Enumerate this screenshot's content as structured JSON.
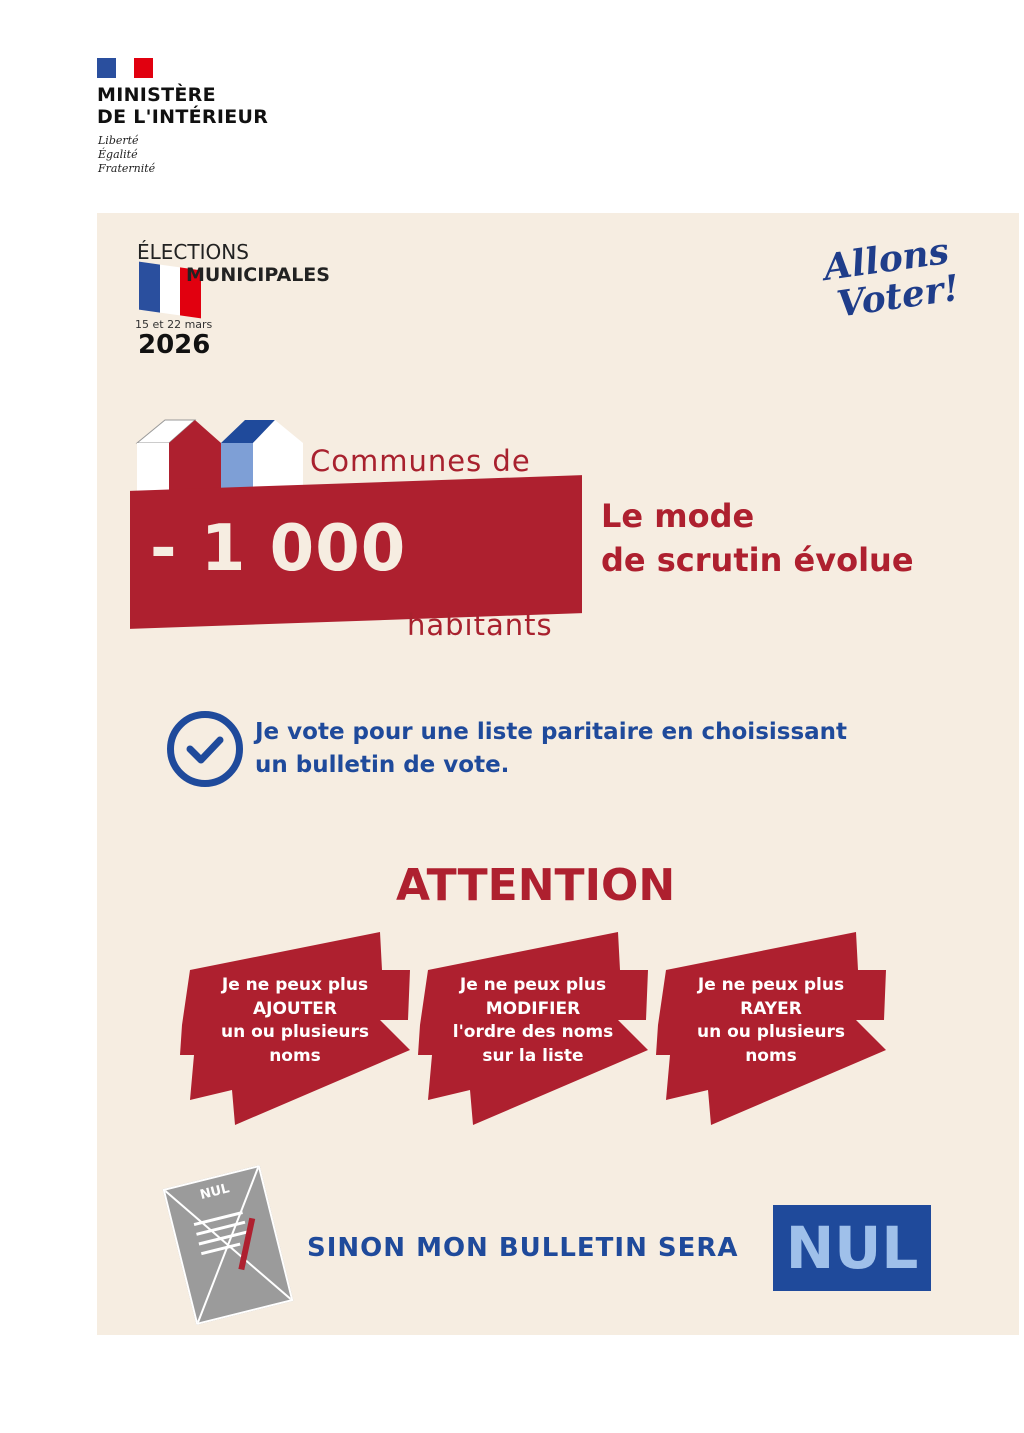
{
  "header": {
    "ministry_line1": "MINISTÈRE",
    "ministry_line2": "DE L'INTÉRIEUR",
    "devise": [
      "Liberté",
      "Égalité",
      "Fraternité"
    ],
    "flag_colors": [
      "#2a4f9e",
      "#ffffff",
      "#e1000f"
    ]
  },
  "election": {
    "line1": "ÉLECTIONS",
    "line2": "MUNICIPALES",
    "dates": "15 et 22 mars",
    "year": "2026"
  },
  "slogan": {
    "line1": "Allons",
    "line2": "Voter!"
  },
  "headline": {
    "communes": "Communes de",
    "number": "- 1 000",
    "habitants": "habitants",
    "mode_line1": "Le mode",
    "mode_line2": "de scrutin évolue"
  },
  "vote": {
    "line1": "Je vote pour une liste paritaire en choisissant",
    "line2": "un bulletin de vote.",
    "icon": "check-circle-icon"
  },
  "attention": {
    "title": "ATTENTION",
    "items": [
      {
        "lines": [
          "Je ne peux plus",
          "AJOUTER",
          "un ou plusieurs",
          "noms"
        ]
      },
      {
        "lines": [
          "Je ne peux plus",
          "MODIFIER",
          "l'ordre des noms",
          "sur la liste"
        ]
      },
      {
        "lines": [
          "Je ne peux plus",
          "RAYER",
          "un ou plusieurs",
          "noms"
        ]
      }
    ]
  },
  "footer": {
    "ballot_label": "NUL",
    "warning": "SINON MON BULLETIN SERA",
    "nul": "NUL"
  },
  "colors": {
    "red": "#ae202f",
    "blue": "#1f4a9b",
    "cream": "#f6ede1"
  }
}
